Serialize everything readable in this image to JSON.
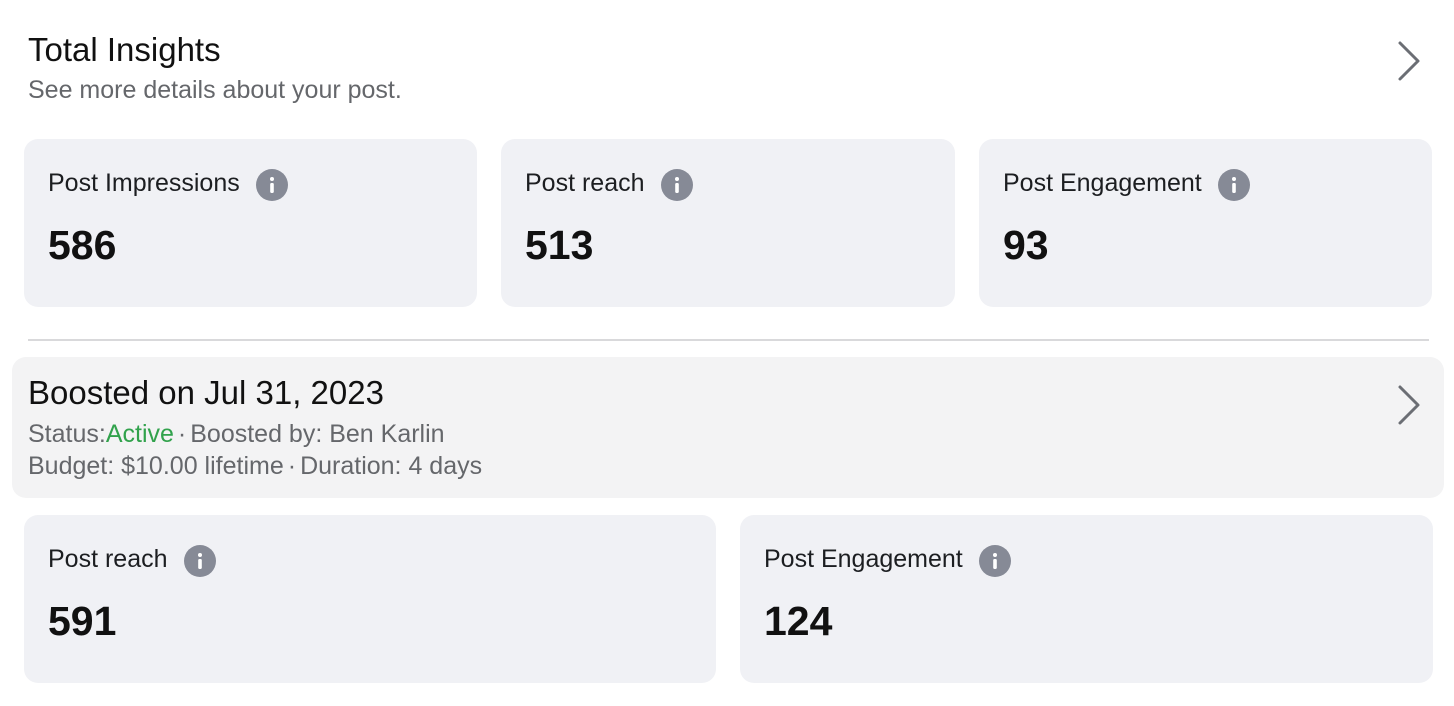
{
  "total_insights": {
    "title": "Total Insights",
    "subtitle": "See more details about your post.",
    "chevron_icon": "chevron-right-icon",
    "cards": [
      {
        "label": "Post Impressions",
        "value": "586",
        "icon": "info-icon"
      },
      {
        "label": "Post reach",
        "value": "513",
        "icon": "info-icon"
      },
      {
        "label": "Post Engagement",
        "value": "93",
        "icon": "info-icon"
      }
    ]
  },
  "boost": {
    "title": "Boosted on Jul 31, 2023",
    "status_label": "Status:",
    "status_value": "Active",
    "separator": "·",
    "boosted_by": "Boosted by: Ben Karlin",
    "budget": "Budget: $10.00 lifetime",
    "duration": "Duration: 4 days",
    "chevron_icon": "chevron-right-icon",
    "cards": [
      {
        "label": "Post reach",
        "value": "591",
        "icon": "info-icon"
      },
      {
        "label": "Post Engagement",
        "value": "124",
        "icon": "info-icon"
      }
    ]
  },
  "colors": {
    "card_bg": "#f0f1f5",
    "boost_bg": "#f3f3f4",
    "status_active": "#31a24c",
    "secondary_text": "#65676b",
    "info_icon": "#868a96"
  }
}
